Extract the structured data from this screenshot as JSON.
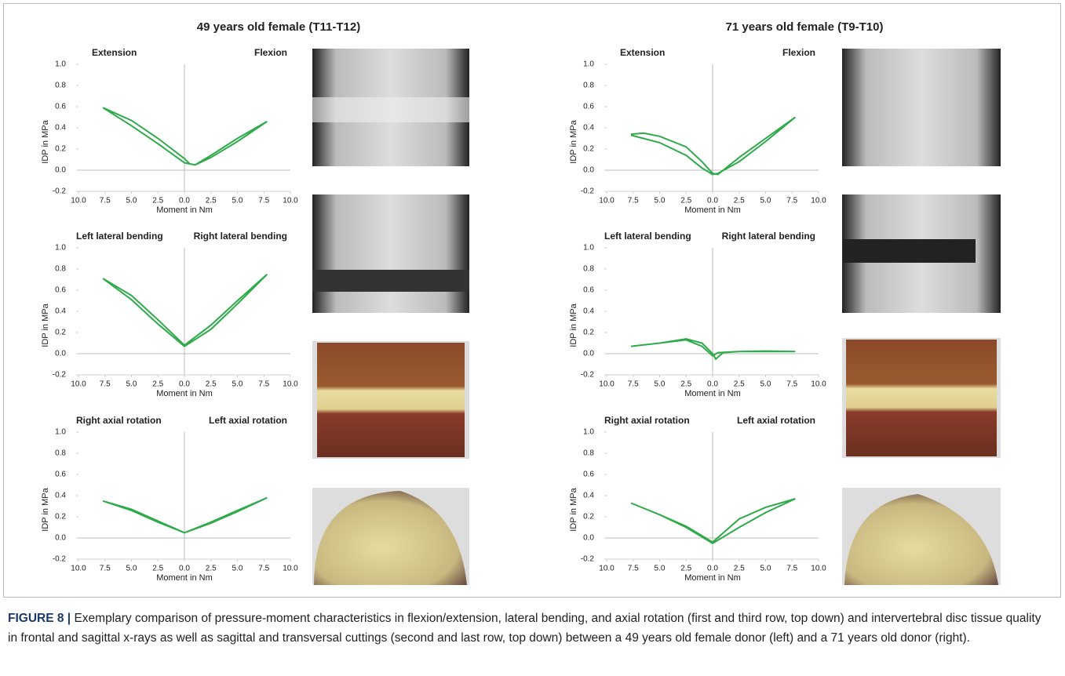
{
  "figure": {
    "columns": [
      {
        "title": "49 years old female (T11-T12)"
      },
      {
        "title": "71 years old female (T9-T10)"
      }
    ],
    "caption": {
      "label": "FIGURE 8 |",
      "text": "Exemplary comparison of pressure-moment characteristics in flexion/extension, lateral bending, and axial rotation (first and third row, top down) and intervertebral disc tissue quality in frontal and sagittal x-rays as well as sagittal and transversal cuttings (second and last row, top down) between a 49 years old female donor (left) and a 71 years old donor (right)."
    }
  },
  "chart_data": [
    {
      "type": "line",
      "annotations": [
        "Extension",
        "Flexion"
      ],
      "xlabel": "Moment in Nm",
      "ylabel": "IDP in MPa",
      "xlim": [
        -10,
        10
      ],
      "xticks": [
        {
          "value": -10,
          "label": "10.0"
        },
        {
          "value": -7.5,
          "label": "7.5"
        },
        {
          "value": -5,
          "label": "5.0"
        },
        {
          "value": -2.5,
          "label": "2.5"
        },
        {
          "value": 0,
          "label": "0.0"
        },
        2.5,
        {
          "value": 5,
          "label": "5.0"
        },
        7.5,
        {
          "value": 10,
          "label": "10.0"
        }
      ],
      "ylim": [
        -0.2,
        1
      ],
      "yticks": [
        -0.2,
        {
          "value": 0,
          "label": "0.0"
        },
        0.2,
        0.4,
        0.6,
        0.8,
        {
          "value": 1,
          "label": "1.0"
        }
      ],
      "series": [
        {
          "color": "#2eaa4a",
          "x": [
            -7.7,
            -5,
            -2.5,
            0,
            0.5,
            1,
            2.5,
            5,
            7.8,
            5,
            2.5,
            1,
            0,
            -2.5,
            -5,
            -7.7
          ],
          "values": [
            0.59,
            0.47,
            0.3,
            0.11,
            0.06,
            0.05,
            0.14,
            0.3,
            0.46,
            0.27,
            0.12,
            0.05,
            0.07,
            0.25,
            0.42,
            0.59
          ]
        }
      ]
    },
    {
      "type": "line",
      "annotations": [
        "Left lateral bending",
        "Right lateral bending"
      ],
      "xlabel": "Moment in Nm",
      "ylabel": "IDP in MPa",
      "xlim": [
        -10,
        10
      ],
      "xticks": [
        {
          "value": -10,
          "label": "10.0"
        },
        {
          "value": -7.5,
          "label": "7.5"
        },
        {
          "value": -5,
          "label": "5.0"
        },
        {
          "value": -2.5,
          "label": "2.5"
        },
        {
          "value": 0,
          "label": "0.0"
        },
        2.5,
        {
          "value": 5,
          "label": "5.0"
        },
        7.5,
        {
          "value": 10,
          "label": "10.0"
        }
      ],
      "ylim": [
        -0.2,
        1
      ],
      "yticks": [
        -0.2,
        {
          "value": 0,
          "label": "0.0"
        },
        0.2,
        0.4,
        0.6,
        0.8,
        {
          "value": 1,
          "label": "1.0"
        }
      ],
      "series": [
        {
          "color": "#2eaa4a",
          "x": [
            -7.7,
            -5,
            -2.5,
            0,
            2.5,
            5,
            7.8,
            5,
            2.5,
            0,
            -2.5,
            -5,
            -7.7
          ],
          "values": [
            0.71,
            0.55,
            0.32,
            0.08,
            0.27,
            0.5,
            0.75,
            0.47,
            0.23,
            0.07,
            0.28,
            0.51,
            0.71
          ]
        }
      ]
    },
    {
      "type": "line",
      "annotations": [
        "Right axial rotation",
        "Left axial rotation"
      ],
      "xlabel": "Moment in Nm",
      "ylabel": "IDP in MPa",
      "xlim": [
        -10,
        10
      ],
      "xticks": [
        {
          "value": -10,
          "label": "10.0"
        },
        {
          "value": -7.5,
          "label": "7.5"
        },
        {
          "value": -5,
          "label": "5.0"
        },
        {
          "value": -2.5,
          "label": "2.5"
        },
        {
          "value": 0,
          "label": "0.0"
        },
        2.5,
        {
          "value": 5,
          "label": "5.0"
        },
        7.5,
        {
          "value": 10,
          "label": "10.0"
        }
      ],
      "ylim": [
        -0.2,
        1
      ],
      "yticks": [
        -0.2,
        {
          "value": 0,
          "label": "0.0"
        },
        0.2,
        0.4,
        0.6,
        0.8,
        {
          "value": 1,
          "label": "1.0"
        }
      ],
      "series": [
        {
          "color": "#2eaa4a",
          "x": [
            -7.7,
            -5,
            -2.5,
            0,
            2.5,
            5,
            7.8,
            5,
            2.5,
            0,
            -2.5,
            -5,
            -7.7
          ],
          "values": [
            0.35,
            0.26,
            0.15,
            0.05,
            0.15,
            0.26,
            0.38,
            0.25,
            0.14,
            0.05,
            0.16,
            0.27,
            0.35
          ]
        }
      ]
    },
    {
      "type": "line",
      "annotations": [
        "Extension",
        "Flexion"
      ],
      "xlabel": "Moment in Nm",
      "ylabel": "IDP in MPa",
      "xlim": [
        -10,
        10
      ],
      "xticks": [
        {
          "value": -10,
          "label": "10.0"
        },
        {
          "value": -7.5,
          "label": "7.5"
        },
        {
          "value": -5,
          "label": "5.0"
        },
        {
          "value": -2.5,
          "label": "2.5"
        },
        {
          "value": 0,
          "label": "0.0"
        },
        2.5,
        {
          "value": 5,
          "label": "5.0"
        },
        7.5,
        {
          "value": 10,
          "label": "10.0"
        }
      ],
      "ylim": [
        -0.2,
        1
      ],
      "yticks": [
        -0.2,
        {
          "value": 0,
          "label": "0.0"
        },
        0.2,
        0.4,
        0.6,
        0.8,
        {
          "value": 1,
          "label": "1.0"
        }
      ],
      "series": [
        {
          "color": "#2eaa4a",
          "x": [
            -7.7,
            -6.5,
            -5,
            -2.5,
            -1,
            0,
            0.5,
            2.5,
            5,
            7.8,
            5,
            2.5,
            0.5,
            0,
            -1,
            -2.5,
            -5,
            -7.7
          ],
          "values": [
            0.34,
            0.35,
            0.32,
            0.22,
            0.08,
            -0.03,
            -0.04,
            0.12,
            0.3,
            0.5,
            0.27,
            0.08,
            -0.03,
            -0.04,
            0.02,
            0.14,
            0.26,
            0.33
          ]
        }
      ]
    },
    {
      "type": "line",
      "annotations": [
        "Left lateral bending",
        "Right lateral bending"
      ],
      "xlabel": "Moment in Nm",
      "ylabel": "IDP in MPa",
      "xlim": [
        -10,
        10
      ],
      "xticks": [
        {
          "value": -10,
          "label": "10.0"
        },
        {
          "value": -7.5,
          "label": "7.5"
        },
        {
          "value": -5,
          "label": "5.0"
        },
        {
          "value": -2.5,
          "label": "2.5"
        },
        {
          "value": 0,
          "label": "0.0"
        },
        2.5,
        {
          "value": 5,
          "label": "5.0"
        },
        7.5,
        {
          "value": 10,
          "label": "10.0"
        }
      ],
      "ylim": [
        -0.2,
        1
      ],
      "yticks": [
        -0.2,
        {
          "value": 0,
          "label": "0.0"
        },
        0.2,
        0.4,
        0.6,
        0.8,
        {
          "value": 1,
          "label": "1.0"
        }
      ],
      "series": [
        {
          "color": "#2eaa4a",
          "x": [
            -7.7,
            -5,
            -2.5,
            -1,
            0,
            0.3,
            1,
            2.5,
            5,
            7.8,
            5,
            2.5,
            0.5,
            0,
            -1,
            -2.5,
            -5,
            -7.7
          ],
          "values": [
            0.07,
            0.1,
            0.14,
            0.1,
            0,
            -0.05,
            0.01,
            0.02,
            0.025,
            0.02,
            0.02,
            0.02,
            0.01,
            -0.02,
            0.07,
            0.13,
            0.1,
            0.07
          ]
        }
      ]
    },
    {
      "type": "line",
      "annotations": [
        "Right axial rotation",
        "Left axial rotation"
      ],
      "xlabel": "Moment in Nm",
      "ylabel": "IDP in MPa",
      "xlim": [
        -10,
        10
      ],
      "xticks": [
        {
          "value": -10,
          "label": "10.0"
        },
        {
          "value": -7.5,
          "label": "7.5"
        },
        {
          "value": -5,
          "label": "5.0"
        },
        {
          "value": -2.5,
          "label": "2.5"
        },
        {
          "value": 0,
          "label": "0.0"
        },
        2.5,
        {
          "value": 5,
          "label": "5.0"
        },
        7.5,
        {
          "value": 10,
          "label": "10.0"
        }
      ],
      "ylim": [
        -0.2,
        1
      ],
      "yticks": [
        -0.2,
        {
          "value": 0,
          "label": "0.0"
        },
        0.2,
        0.4,
        0.6,
        0.8,
        {
          "value": 1,
          "label": "1.0"
        }
      ],
      "series": [
        {
          "color": "#2eaa4a",
          "x": [
            -7.7,
            -5,
            -2.5,
            0,
            2.5,
            5,
            7.8,
            5,
            2.5,
            0,
            -2.5,
            -5,
            -7.7
          ],
          "values": [
            0.33,
            0.22,
            0.11,
            -0.04,
            0.18,
            0.29,
            0.37,
            0.24,
            0.1,
            -0.05,
            0.1,
            0.22,
            0.33
          ]
        }
      ]
    }
  ]
}
